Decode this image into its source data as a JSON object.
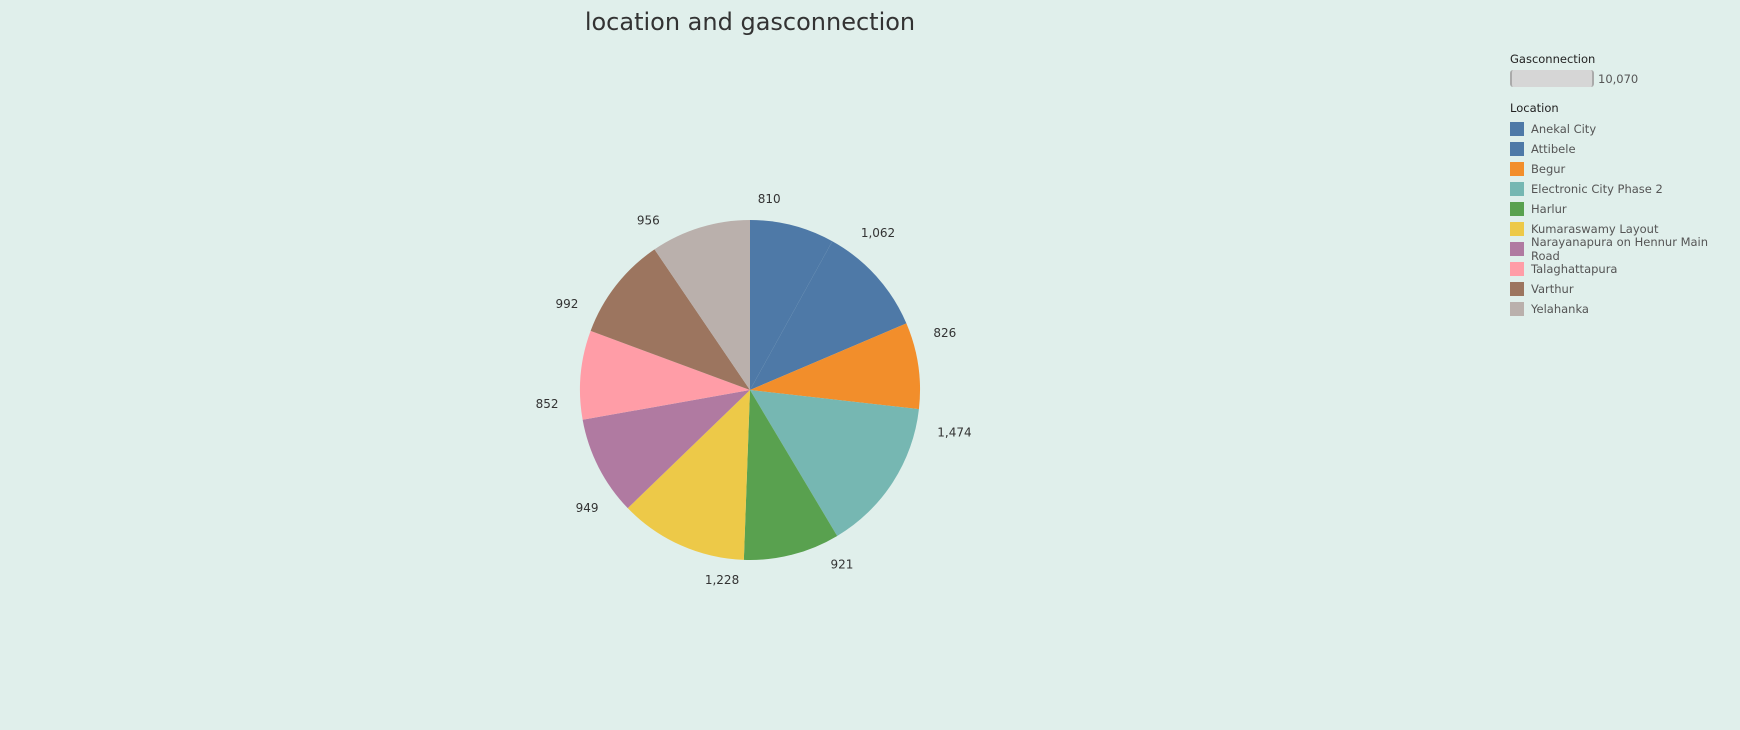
{
  "chart_data": {
    "type": "pie",
    "title": "location and gasconnection",
    "size_legend": {
      "title": "Gasconnection",
      "value_label": "10,070"
    },
    "legend_title": "Location",
    "legend": [
      {
        "name": "Anekal City",
        "color": "#4e79a7"
      },
      {
        "name": "Attibele",
        "color": "#4e79a7"
      },
      {
        "name": "Begur",
        "color": "#f28e2b"
      },
      {
        "name": "Electronic City Phase 2",
        "color": "#76b7b2"
      },
      {
        "name": "Harlur",
        "color": "#59a14f"
      },
      {
        "name": "Kumaraswamy Layout",
        "color": "#edc948"
      },
      {
        "name": "Narayanapura on Hennur Main Road",
        "color": "#b07aa1"
      },
      {
        "name": "Talaghattapura",
        "color": "#ff9da7"
      },
      {
        "name": "Varthur",
        "color": "#9c755f"
      },
      {
        "name": "Yelahanka",
        "color": "#bab0ac"
      }
    ],
    "slices": [
      {
        "location": "Anekal City",
        "value": 810,
        "label": "810",
        "color": "#4e79a7"
      },
      {
        "location": "Attibele",
        "value": 1062,
        "label": "1,062",
        "color": "#4e79a7"
      },
      {
        "location": "Begur",
        "value": 826,
        "label": "826",
        "color": "#f28e2b"
      },
      {
        "location": "Electronic City Phase 2",
        "value": 1474,
        "label": "1,474",
        "color": "#76b7b2"
      },
      {
        "location": "Harlur",
        "value": 921,
        "label": "921",
        "color": "#59a14f"
      },
      {
        "location": "Kumaraswamy Layout",
        "value": 1228,
        "label": "1,228",
        "color": "#edc948"
      },
      {
        "location": "Narayanapura on Hennur Main Road",
        "value": 949,
        "label": "949",
        "color": "#b07aa1"
      },
      {
        "location": "Talaghattapura",
        "value": 852,
        "label": "852",
        "color": "#ff9da7"
      },
      {
        "location": "Varthur",
        "value": 992,
        "label": "992",
        "color": "#9c755f"
      },
      {
        "location": "Yelahanka",
        "value": 956,
        "label": "956",
        "color": "#bab0ac"
      }
    ]
  }
}
